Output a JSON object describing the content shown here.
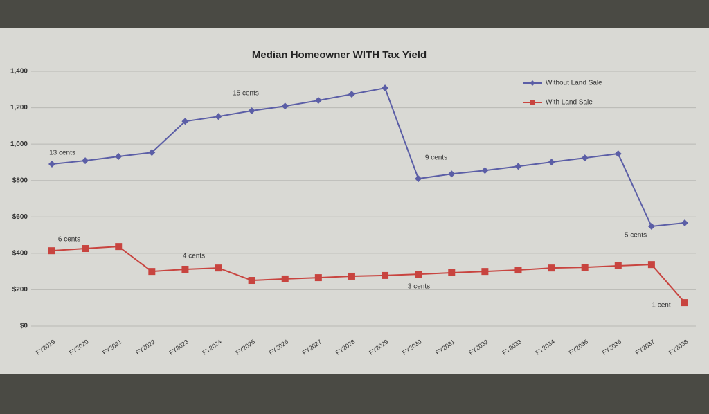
{
  "chart_data": {
    "type": "line",
    "title": "Median Homeowner WITH Tax Yield",
    "categories": [
      "FY2019",
      "FY2020",
      "FY2021",
      "FY2022",
      "FY2023",
      "FY2024",
      "FY2025",
      "FY2026",
      "FY2027",
      "FY2028",
      "FY2029",
      "FY2030",
      "FY2031",
      "FY2032",
      "FY2033",
      "FY2034",
      "FY2035",
      "FY2036",
      "FY2037",
      "FY2038"
    ],
    "series": [
      {
        "name": "Without Land Sale",
        "color": "#5b5ea6",
        "marker": "diamond",
        "values": [
          890,
          909,
          932,
          954,
          1125,
          1152,
          1183,
          1209,
          1240,
          1274,
          1308,
          810,
          836,
          855,
          878,
          901,
          924,
          947,
          548,
          567
        ]
      },
      {
        "name": "With Land Sale",
        "color": "#c8443f",
        "marker": "square",
        "values": [
          414,
          426,
          437,
          300,
          312,
          319,
          251,
          259,
          266,
          274,
          278,
          285,
          293,
          300,
          308,
          319,
          323,
          331,
          338,
          129
        ]
      }
    ],
    "ylim": [
      0,
      1400
    ],
    "yticks": [
      {
        "value": 0,
        "label": "$0"
      },
      {
        "value": 200,
        "label": "$200"
      },
      {
        "value": 400,
        "label": "$400"
      },
      {
        "value": 600,
        "label": "$600"
      },
      {
        "value": 800,
        "label": "$800"
      },
      {
        "value": 1000,
        "label": "1,000"
      },
      {
        "value": 1200,
        "label": "1,200"
      },
      {
        "value": 1400,
        "label": "1,400"
      }
    ],
    "grid": true,
    "legend": "upper right",
    "annotations": [
      "13 cents",
      "15 cents",
      "9 cents",
      "5 cents",
      "6 cents",
      "4 cents",
      "3 cents",
      "1 cent"
    ]
  }
}
